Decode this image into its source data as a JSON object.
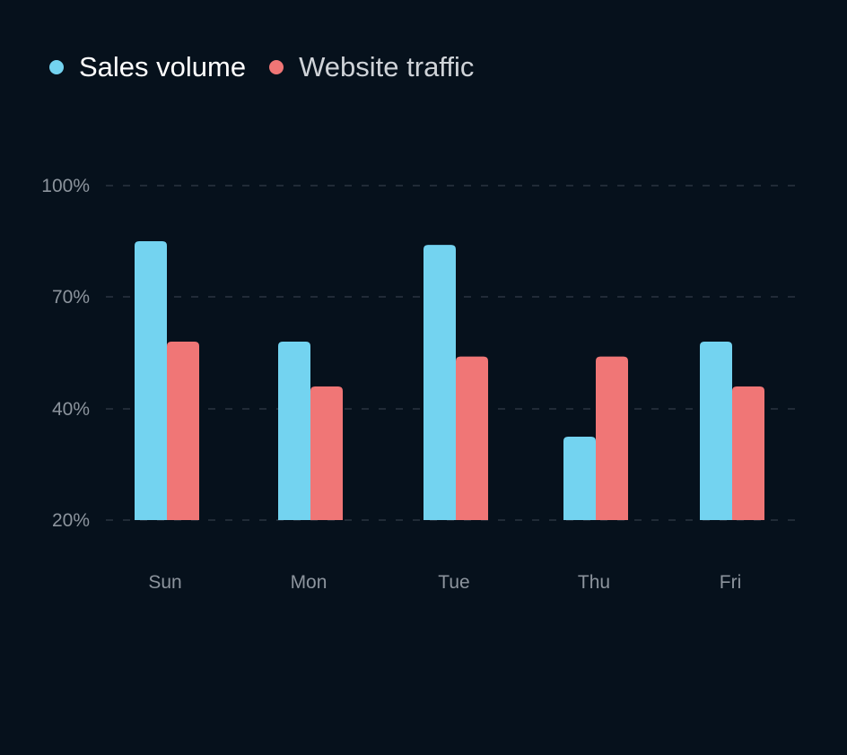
{
  "legend": {
    "series_a": "Sales volume",
    "series_b": "Website traffic"
  },
  "colors": {
    "background": "#06111c",
    "series_a": "#73d3f0",
    "series_b": "#f07676",
    "grid": "#2a3440",
    "tick_text": "#8c949d",
    "legend_a_text": "#ffffff",
    "legend_b_text": "#cfd3d8"
  },
  "chart_data": {
    "type": "bar",
    "title": "",
    "xlabel": "",
    "ylabel": "",
    "categories": [
      "Sun",
      "Mon",
      "Tue",
      "Thu",
      "Fri"
    ],
    "series": [
      {
        "name": "Sales volume",
        "values": [
          85,
          58,
          84,
          35,
          58
        ]
      },
      {
        "name": "Website traffic",
        "values": [
          58,
          46,
          54,
          54,
          46
        ]
      }
    ],
    "y_ticks": [
      100,
      70,
      40,
      20
    ],
    "y_tick_labels": [
      "100%",
      "70%",
      "40%",
      "20%"
    ],
    "ylim": [
      20,
      100
    ],
    "grid": true,
    "legend_position": "top-left"
  }
}
